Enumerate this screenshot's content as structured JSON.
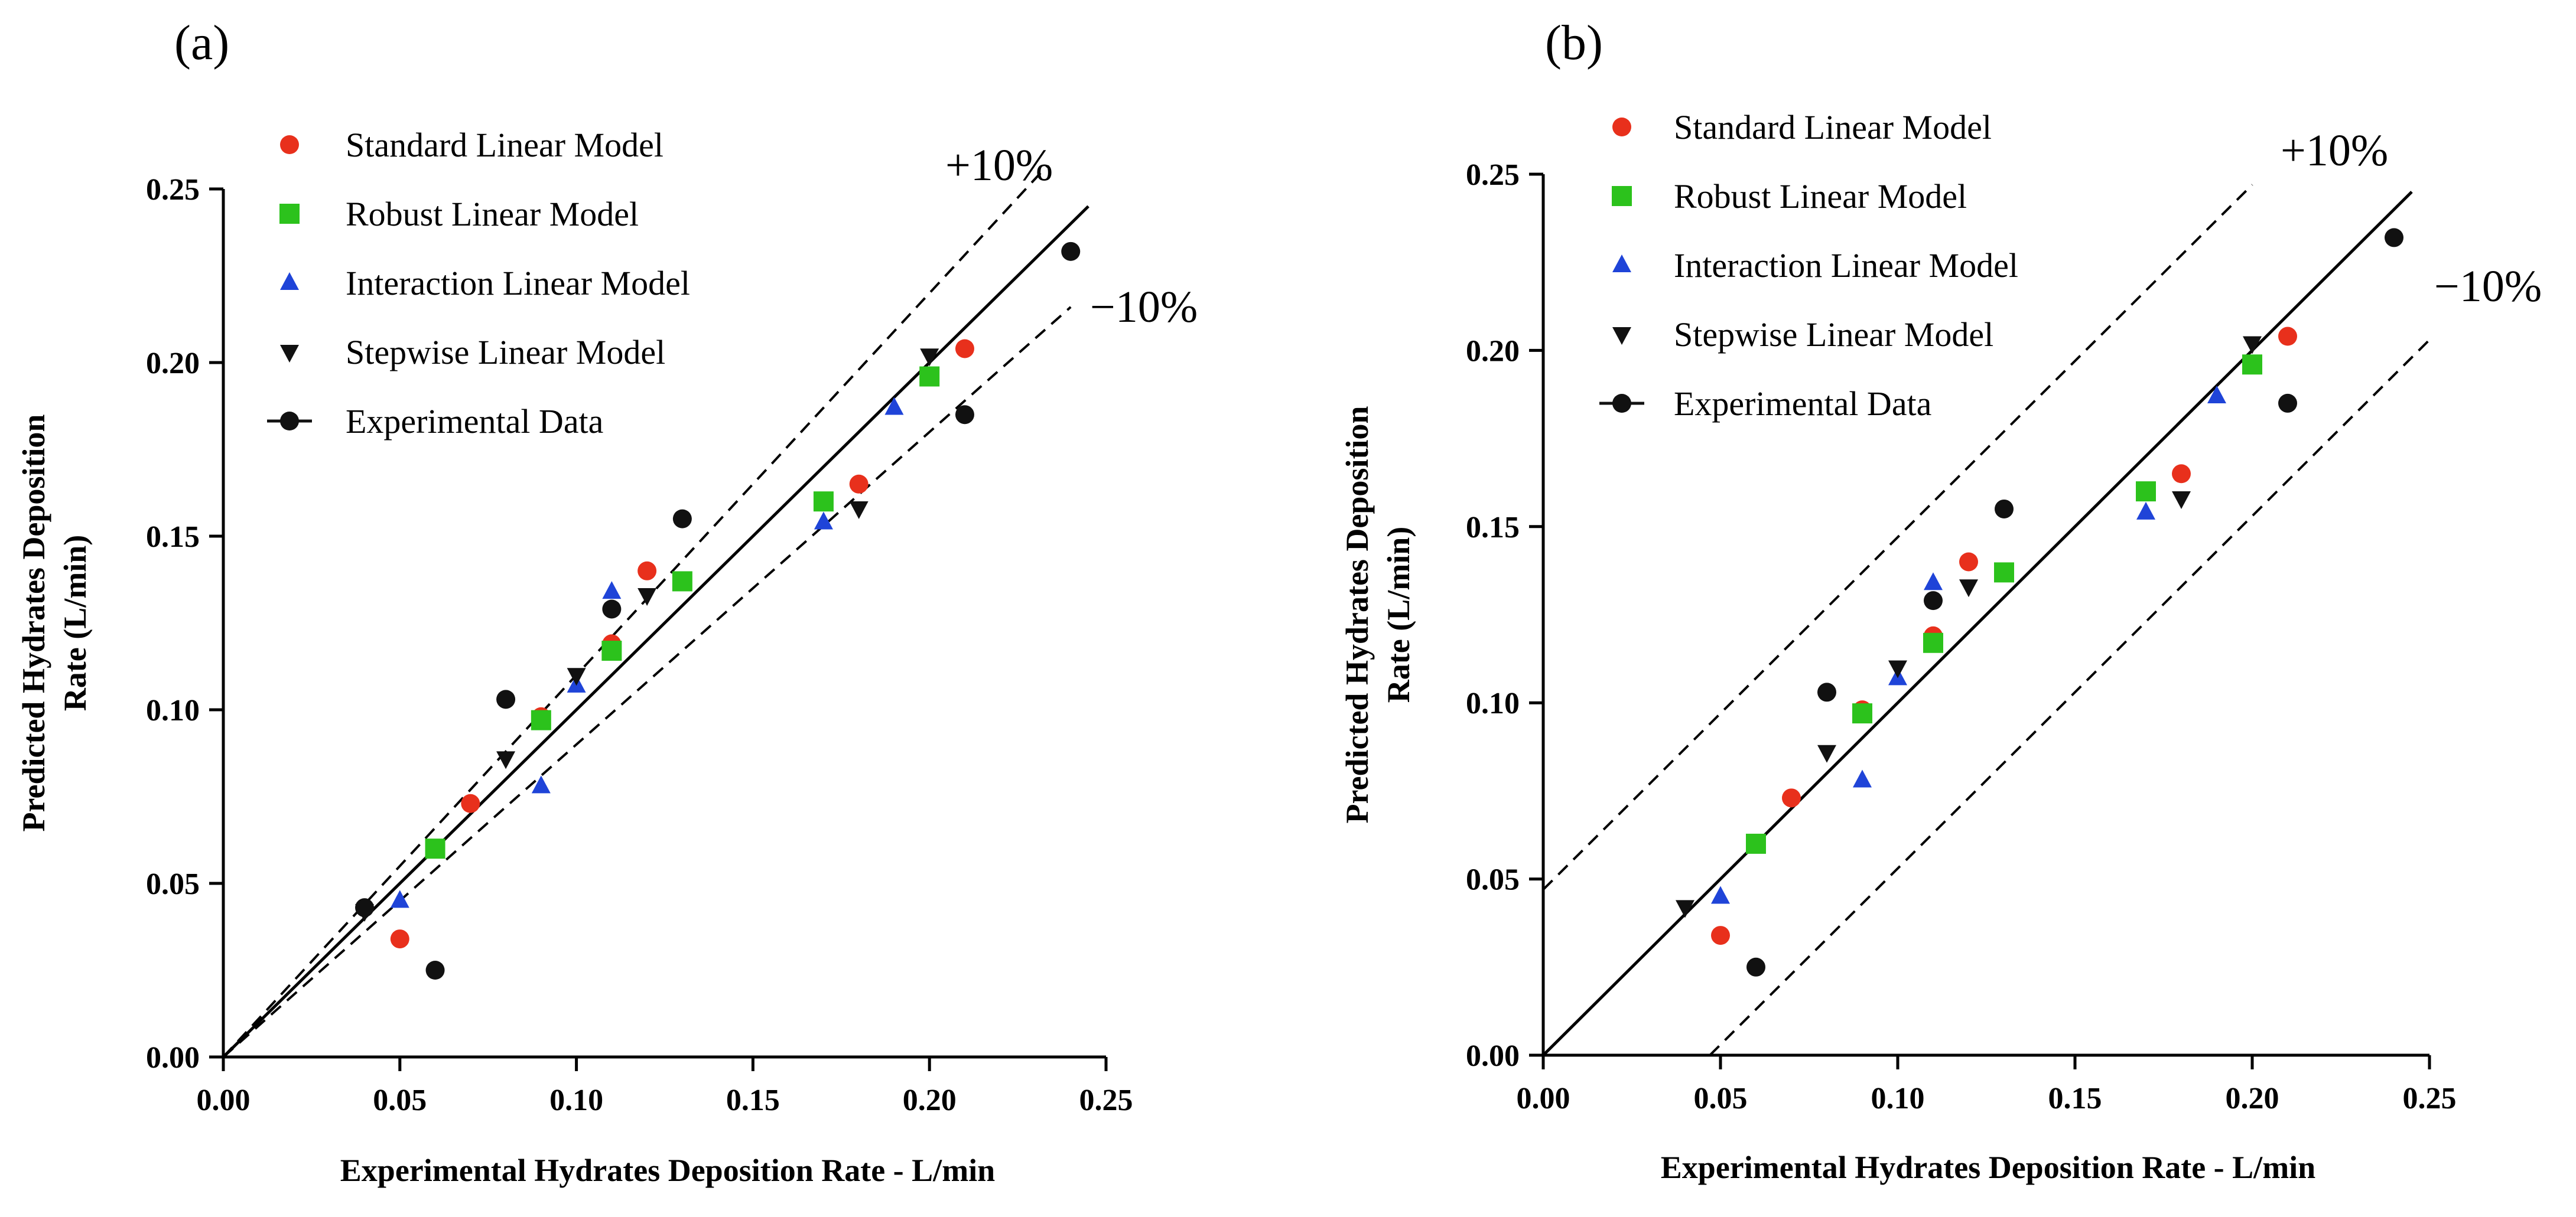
{
  "chart_data": [
    {
      "type": "scatter",
      "panel_label": "(a)",
      "xlabel": "Experimental Hydrates Deposition Rate - L/min",
      "ylabel_line1": "Predicted Hydrates Deposition",
      "ylabel_line2": "Rate (L/min)",
      "xlim": [
        0,
        0.25
      ],
      "ylim": [
        0,
        0.25
      ],
      "xticks": [
        "0.00",
        "0.05",
        "0.10",
        "0.15",
        "0.20",
        "0.25"
      ],
      "yticks": [
        "0.00",
        "0.05",
        "0.10",
        "0.15",
        "0.20",
        "0.25"
      ],
      "band_type": "proportional",
      "band_plus_label": "+10%",
      "band_minus_label": "−10%",
      "legend_placement": "top-center",
      "series": [
        {
          "name": "Standard Linear Model",
          "marker": "circle",
          "color": "#e8301c",
          "x": [
            0.05,
            0.07,
            0.09,
            0.11,
            0.12,
            0.18,
            0.21
          ],
          "y": [
            0.034,
            0.073,
            0.098,
            0.119,
            0.14,
            0.165,
            0.204
          ]
        },
        {
          "name": "Robust Linear Model",
          "marker": "square",
          "color": "#2cc21c",
          "x": [
            0.06,
            0.09,
            0.11,
            0.13,
            0.17,
            0.2
          ],
          "y": [
            0.06,
            0.097,
            0.117,
            0.137,
            0.16,
            0.196
          ]
        },
        {
          "name": "Interaction Linear Model",
          "marker": "triangle-up",
          "color": "#1f44d8",
          "x": [
            0.05,
            0.09,
            0.1,
            0.11,
            0.17,
            0.19
          ],
          "y": [
            0.045,
            0.078,
            0.107,
            0.134,
            0.154,
            0.187
          ]
        },
        {
          "name": "Stepwise Linear Model",
          "marker": "triangle-down",
          "color": "#111111",
          "x": [
            0.04,
            0.08,
            0.1,
            0.12,
            0.18,
            0.2
          ],
          "y": [
            0.042,
            0.086,
            0.11,
            0.133,
            0.158,
            0.202
          ]
        },
        {
          "name": "Experimental Data",
          "marker": "circle-line",
          "color": "#111111",
          "x": [
            0.04,
            0.06,
            0.08,
            0.11,
            0.13,
            0.21,
            0.24
          ],
          "y": [
            0.043,
            0.025,
            0.103,
            0.129,
            0.155,
            0.185,
            0.232
          ]
        }
      ]
    },
    {
      "type": "scatter",
      "panel_label": "(b)",
      "xlabel": "Experimental Hydrates Deposition Rate - L/min",
      "ylabel_line1": "Predicted Hydrates Deposition",
      "ylabel_line2": "Rate (L/min)",
      "xlim": [
        0,
        0.25
      ],
      "ylim": [
        0,
        0.25
      ],
      "xticks": [
        "0.00",
        "0.05",
        "0.10",
        "0.15",
        "0.20",
        "0.25"
      ],
      "yticks": [
        "0.00",
        "0.05",
        "0.10",
        "0.15",
        "0.20",
        "0.25"
      ],
      "band_type": "offset",
      "band_offset": 0.047,
      "band_plus_label": "+10%",
      "band_minus_label": "−10%",
      "legend_placement": "top-left",
      "series": [
        {
          "name": "Standard Linear Model",
          "marker": "circle",
          "color": "#e8301c",
          "x": [
            0.05,
            0.07,
            0.09,
            0.11,
            0.12,
            0.18,
            0.21
          ],
          "y": [
            0.034,
            0.073,
            0.098,
            0.119,
            0.14,
            0.165,
            0.204
          ]
        },
        {
          "name": "Robust Linear Model",
          "marker": "square",
          "color": "#2cc21c",
          "x": [
            0.06,
            0.09,
            0.11,
            0.13,
            0.17,
            0.2
          ],
          "y": [
            0.06,
            0.097,
            0.117,
            0.137,
            0.16,
            0.196
          ]
        },
        {
          "name": "Interaction Linear Model",
          "marker": "triangle-up",
          "color": "#1f44d8",
          "x": [
            0.05,
            0.09,
            0.1,
            0.11,
            0.17,
            0.19
          ],
          "y": [
            0.045,
            0.078,
            0.107,
            0.134,
            0.154,
            0.187
          ]
        },
        {
          "name": "Stepwise Linear Model",
          "marker": "triangle-down",
          "color": "#111111",
          "x": [
            0.04,
            0.08,
            0.1,
            0.12,
            0.18,
            0.2
          ],
          "y": [
            0.042,
            0.086,
            0.11,
            0.133,
            0.158,
            0.202
          ]
        },
        {
          "name": "Experimental Data",
          "marker": "circle-line",
          "color": "#111111",
          "x": [
            0.06,
            0.08,
            0.11,
            0.13,
            0.21,
            0.24
          ],
          "y": [
            0.025,
            0.103,
            0.129,
            0.155,
            0.185,
            0.232
          ]
        }
      ]
    }
  ]
}
